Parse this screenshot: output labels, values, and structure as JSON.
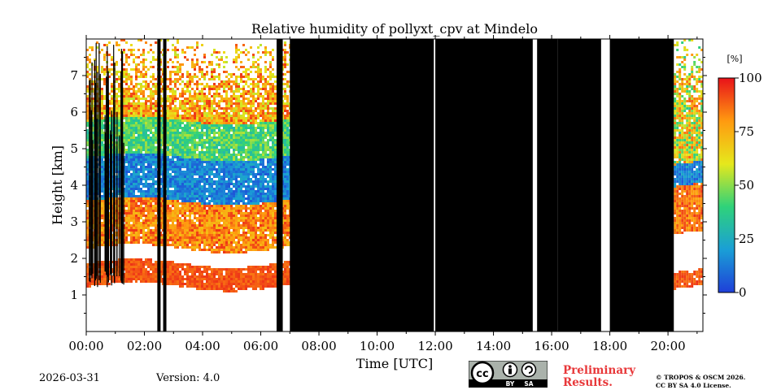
{
  "chart_data": {
    "type": "heatmap",
    "title": "Relative humidity of pollyxt_cpv at Mindelo",
    "xlabel": "Time [UTC]",
    "ylabel": "Height [km]",
    "xlim": [
      0,
      21.2
    ],
    "ylim": [
      0,
      8
    ],
    "x_ticks": [
      0,
      2,
      4,
      6,
      8,
      10,
      12,
      14,
      16,
      18,
      20
    ],
    "x_tick_labels": [
      "00:00",
      "02:00",
      "04:00",
      "06:00",
      "08:00",
      "10:00",
      "12:00",
      "14:00",
      "16:00",
      "18:00",
      "20:00"
    ],
    "y_ticks": [
      1,
      2,
      3,
      4,
      5,
      6,
      7
    ],
    "y_tick_labels": [
      "1",
      "2",
      "3",
      "4",
      "5",
      "6",
      "7"
    ],
    "colorbar": {
      "label": "[%]",
      "range": [
        0,
        100
      ],
      "ticks": [
        0,
        25,
        50,
        75,
        100
      ],
      "tick_labels": [
        "0",
        "25",
        "50",
        "75",
        "100"
      ],
      "colors": [
        "#1f3fd8",
        "#1a9fd6",
        "#2fd27a",
        "#e6e81c",
        "#ff9a10",
        "#e8121a"
      ]
    },
    "night_segments": [
      {
        "start_h": 0.0,
        "end_h": 7.0,
        "layers": [
          {
            "bottom_km": 1.25,
            "top_km": 1.9,
            "rh": [
              85,
              95
            ]
          },
          {
            "bottom_km": 2.3,
            "top_km": 3.7,
            "rh": [
              70,
              95
            ]
          },
          {
            "bottom_km": 3.6,
            "top_km": 4.8,
            "rh": [
              5,
              25
            ]
          },
          {
            "bottom_km": 4.8,
            "top_km": 5.8,
            "rh": [
              30,
              55
            ]
          },
          {
            "bottom_km": 5.8,
            "top_km": 8.0,
            "rh": [
              55,
              95
            ]
          }
        ]
      },
      {
        "start_h": 20.2,
        "end_h": 21.2,
        "layers": [
          {
            "bottom_km": 1.2,
            "top_km": 1.65,
            "rh": [
              85,
              95
            ]
          },
          {
            "bottom_km": 2.7,
            "top_km": 4.0,
            "rh": [
              75,
              95
            ]
          },
          {
            "bottom_km": 4.0,
            "top_km": 4.6,
            "rh": [
              5,
              25
            ]
          },
          {
            "bottom_km": 4.6,
            "top_km": 8.0,
            "rh": [
              35,
              90
            ]
          }
        ]
      }
    ],
    "no_data_periods": [
      {
        "start_h": 7.0,
        "end_h": 11.95
      },
      {
        "start_h": 12.0,
        "end_h": 15.35
      },
      {
        "start_h": 15.5,
        "end_h": 16.2
      },
      {
        "start_h": 16.2,
        "end_h": 17.7
      },
      {
        "start_h": 18.0,
        "end_h": 20.2
      }
    ],
    "gap_lines": [
      2.5,
      2.7,
      6.6,
      6.7
    ]
  },
  "footer": {
    "date": "2026-03-31",
    "version": "Version: 4.0",
    "preliminary_line1": "Preliminary",
    "preliminary_line2": "Results.",
    "copyright_line1": "© TROPOS & OSCM 2026.",
    "copyright_line2": "CC BY SA 4.0 License.",
    "license_badge": {
      "cc": "cc",
      "by": "BY",
      "sa": "SA"
    }
  }
}
